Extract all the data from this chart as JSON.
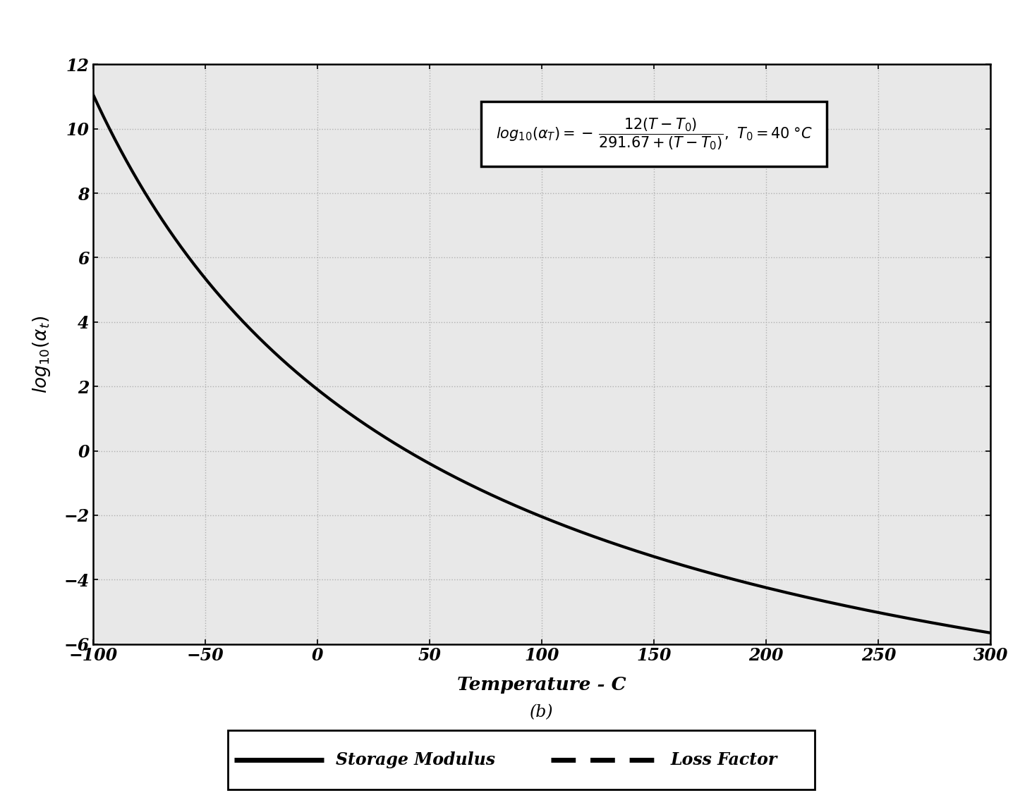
{
  "T0": 40,
  "T_min": -100,
  "T_max": 300,
  "y_min": -6,
  "y_max": 12,
  "x_ticks": [
    -100,
    -50,
    0,
    50,
    100,
    150,
    200,
    250,
    300
  ],
  "y_ticks": [
    -6,
    -4,
    -2,
    0,
    2,
    4,
    6,
    8,
    10,
    12
  ],
  "x_tick_labels": [
    "−100",
    "−50",
    "0",
    "50",
    "100",
    "150",
    "200",
    "250",
    "300"
  ],
  "y_tick_labels": [
    "−6",
    "−4",
    "−2",
    "0",
    "2",
    "4",
    "6",
    "8",
    "10",
    "12"
  ],
  "xlabel": "Temperature - C",
  "caption": "(b)",
  "curve_color": "#000000",
  "curve_linewidth": 3.0,
  "grid_color": "#b0b0b0",
  "grid_linestyle": ":",
  "background_color": "#e8e8e8",
  "annotation_box_facecolor": "#ffffff",
  "annotation_box_edgecolor": "#000000",
  "legend_items": [
    "Storage Modulus",
    "Loss Factor"
  ]
}
